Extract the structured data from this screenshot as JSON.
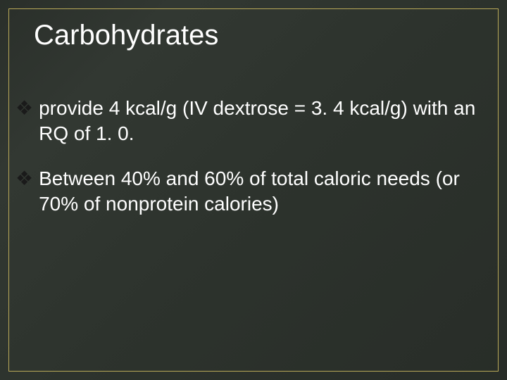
{
  "slide": {
    "title": "Carbohydrates",
    "background_gradient_colors": [
      "#2a2f2a",
      "#323832",
      "#2d332d",
      "#282d28"
    ],
    "border_color": "#b8a858",
    "title_color": "#ffffff",
    "title_fontsize": 40,
    "text_color": "#ffffff",
    "bullet_color": "#1a1a1a",
    "bullet_fontsize": 28,
    "bullet_glyph": "❖",
    "bullets": [
      "provide 4 kcal/g (IV dextrose = 3. 4 kcal/g) with an RQ of 1. 0.",
      "Between 40% and 60% of total caloric needs (or 70% of nonprotein calories)"
    ]
  }
}
